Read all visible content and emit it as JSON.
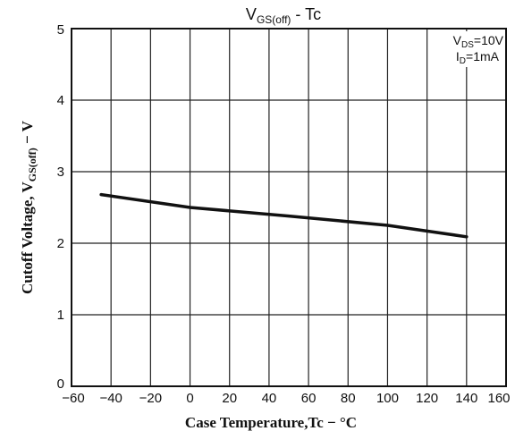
{
  "chart_data": {
    "type": "line",
    "title": {
      "main": "V",
      "sub": "GS(off)",
      "rest": " - Tc"
    },
    "xlabel": "Case Temperature,Tc − °C",
    "ylabel": {
      "main": "Cutoff Voltage, V",
      "sub": "GS(off)",
      "rest": " − V"
    },
    "xlim": [
      -60,
      160
    ],
    "ylim": [
      0,
      5
    ],
    "x_ticks": [
      "−60",
      "−40",
      "−20",
      "0",
      "20",
      "40",
      "60",
      "80",
      "100",
      "120",
      "140",
      "160"
    ],
    "y_ticks": [
      "0",
      "1",
      "2",
      "3",
      "4",
      "5"
    ],
    "grid": true,
    "conditions": [
      {
        "main": "V",
        "sub": "DS",
        "rest": "=10V"
      },
      {
        "main": "I",
        "sub": "D",
        "rest": "=1mA"
      }
    ],
    "series": [
      {
        "x": [
          -45,
          0,
          50,
          100,
          140
        ],
        "y": [
          2.68,
          2.5,
          2.38,
          2.25,
          2.09
        ]
      }
    ],
    "colors": {
      "line": "#111111",
      "grid": "#222222",
      "frame": "#111111"
    }
  }
}
